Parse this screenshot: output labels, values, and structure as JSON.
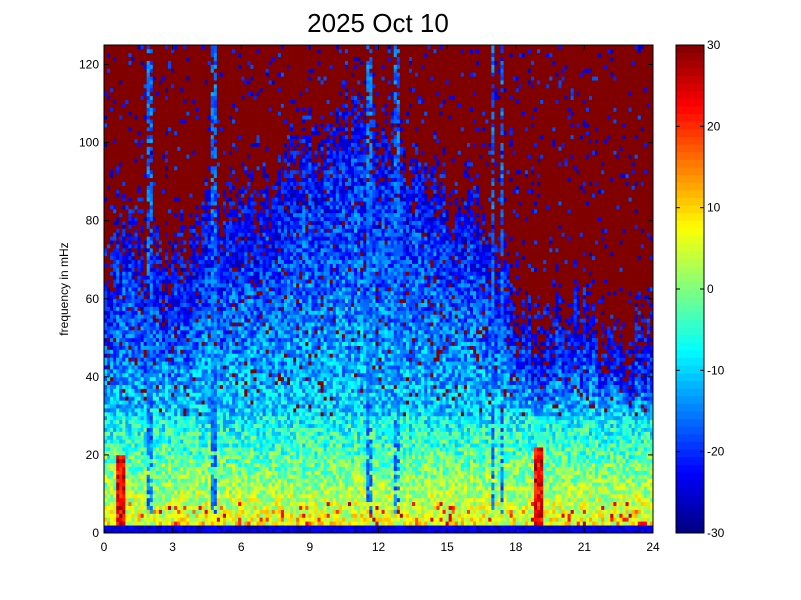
{
  "chart_data": {
    "type": "heatmap",
    "title": "2025 Oct 10",
    "xlabel": "",
    "ylabel": "frequency in mHz",
    "xlim": [
      0,
      24
    ],
    "ylim": [
      0,
      125
    ],
    "x_ticks": [
      0,
      3,
      6,
      9,
      12,
      15,
      18,
      21,
      24
    ],
    "y_ticks": [
      0,
      20,
      40,
      60,
      80,
      100,
      120
    ],
    "colorbar": {
      "colormap": "jet",
      "range": [
        -30,
        30
      ],
      "ticks": [
        -30,
        -20,
        -10,
        0,
        10,
        20,
        30
      ]
    },
    "grid": {
      "time_bins": 180,
      "freq_bins": 125
    },
    "profile": {
      "description_note": "",
      "hours": [
        0,
        1,
        2,
        3,
        4,
        5,
        6,
        7,
        8,
        9,
        10,
        11,
        12,
        13,
        14,
        15,
        16,
        17,
        18,
        19,
        20,
        21,
        22,
        23,
        24
      ],
      "activity_top_mHz": [
        55,
        70,
        62,
        60,
        66,
        72,
        74,
        76,
        82,
        90,
        95,
        98,
        92,
        88,
        85,
        78,
        74,
        68,
        45,
        42,
        50,
        45,
        40,
        38,
        45
      ],
      "floor_value": 30,
      "low_band_value": 8,
      "low_band_top_mHz": 30
    },
    "burst_events": [
      {
        "hour": 0.7,
        "top_mHz": 20
      },
      {
        "hour": 19.0,
        "top_mHz": 22
      }
    ],
    "vertical_streaks": [
      {
        "hour": 2.0
      },
      {
        "hour": 4.8
      },
      {
        "hour": 11.6
      },
      {
        "hour": 12.8
      },
      {
        "hour": 17.0
      },
      {
        "hour": 17.4
      }
    ]
  }
}
